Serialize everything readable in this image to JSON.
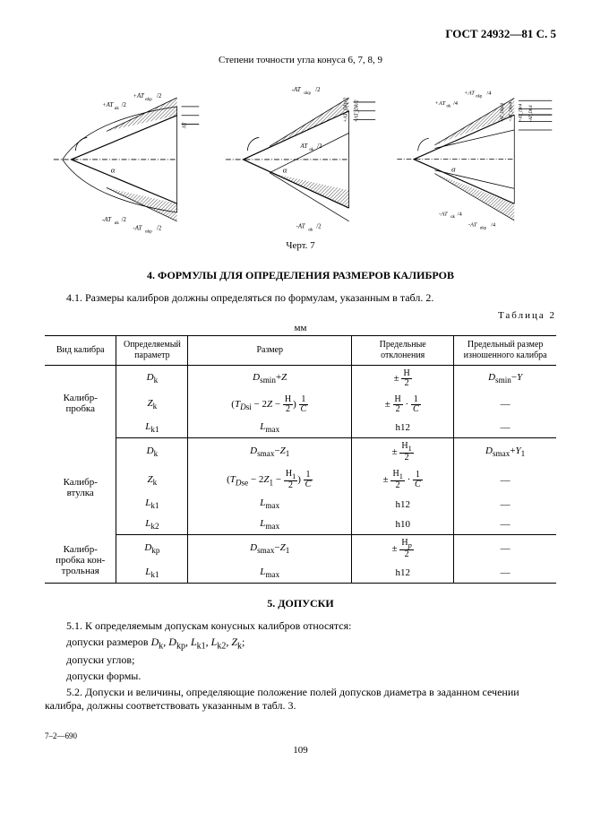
{
  "header": {
    "standard": "ГОСТ 24932—81 С. 5"
  },
  "fig_caption_top": "Степени точности угла конуса 6, 7, 8, 9",
  "fig_caption_bottom": "Черт. 7",
  "section4": {
    "title": "4. ФОРМУЛЫ ДЛЯ ОПРЕДЕЛЕНИЯ РАЗМЕРОВ КАЛИБРОВ",
    "p1": "4.1. Размеры калибров должны определяться по формулам, указанным в табл. 2."
  },
  "table2": {
    "label": "Таблица 2",
    "unit": "мм",
    "headers": {
      "c1": "Вид калибра",
      "c2": "Определяемый параметр",
      "c3": "Размер",
      "c4": "Предельные отклонения",
      "c5": "Предельный размер изношен­ного калибра"
    },
    "groups": [
      {
        "name": "Калибр-пробка",
        "rows": [
          {
            "param": "D_k",
            "size_html": "<i>D</i><sub>smin</sub>+<i>Z</i>",
            "dev_html": "± <span class='frac'><span class='num'>H</span><span class='den'>2</span></span>",
            "worn_html": "<i>D</i><sub>smin</sub>−<i>Y</i>"
          },
          {
            "param": "Z_k",
            "size_html": "(<i>T</i><sub><i>D</i>si</sub> − 2<i>Z</i> − <span class='frac'><span class='num'>H</span><span class='den'>2</span></span>) <span class='frac'><span class='num'>1</span><span class='den'><i>C</i></span></span>",
            "dev_html": "± <span class='frac'><span class='num'>H</span><span class='den'>2</span></span> · <span class='frac'><span class='num'>1</span><span class='den'><i>C</i></span></span>",
            "worn_html": "—"
          },
          {
            "param": "L_k1",
            "size_html": "<i>L</i><sub>max</sub>",
            "dev_html": "h12",
            "worn_html": "—"
          }
        ]
      },
      {
        "name": "Калибр-втулка",
        "rows": [
          {
            "param": "D_k",
            "size_html": "<i>D</i><sub>smax</sub>−<i>Z</i><sub>1</sub>",
            "dev_html": "± <span class='frac'><span class='num'>H<sub>1</sub></span><span class='den'>2</span></span>",
            "worn_html": "<i>D</i><sub>smax</sub>+<i>Y</i><sub>1</sub>"
          },
          {
            "param": "Z_k",
            "size_html": "(<i>T</i><sub><i>D</i>se</sub> − 2<i>Z</i><sub>1</sub> − <span class='frac'><span class='num'>H<sub>1</sub></span><span class='den'>2</span></span>) <span class='frac'><span class='num'>1</span><span class='den'><i>C</i></span></span>",
            "dev_html": "± <span class='frac'><span class='num'>H<sub>1</sub></span><span class='den'>2</span></span> · <span class='frac'><span class='num'>1</span><span class='den'><i>C</i></span></span>",
            "worn_html": "—"
          },
          {
            "param": "L_k1",
            "size_html": "<i>L</i><sub>max</sub>",
            "dev_html": "h12",
            "worn_html": "—"
          },
          {
            "param": "L_k2",
            "size_html": "<i>L</i><sub>max</sub>",
            "dev_html": "h10",
            "worn_html": "—"
          }
        ]
      },
      {
        "name": "Калибр-пробка кон­трольная",
        "rows": [
          {
            "param": "D_kp",
            "size_html": "<i>D</i><sub>smax</sub>−<i>Z</i><sub>1</sub>",
            "dev_html": "± <span class='frac'><span class='num'>H<sub><i>p</i></sub></span><span class='den'>2</span></span>",
            "worn_html": "—"
          },
          {
            "param": "L_k1",
            "size_html": "<i>L</i><sub>max</sub>",
            "dev_html": "h12",
            "worn_html": "—"
          }
        ]
      }
    ]
  },
  "section5": {
    "title": "5. ДОПУСКИ",
    "p1_html": "5.1. К определяемым допускам конусных калибров относятся:",
    "p2_html": "допуски размеров <i>D</i><sub>k</sub>, <i>D</i><sub>kp</sub>, <i>L</i><sub>k1</sub>, <i>L</i><sub>k2</sub>, <i>Z</i><sub>k</sub>;",
    "p3": "допуски углов;",
    "p4": "допуски формы.",
    "p5": "5.2. Допуски и величины, определяющие положение полей допусков диаметра в заданном сече­нии калибра, должны соответствовать указанным в табл. 3."
  },
  "footer": {
    "left": "7–2—690",
    "page": "109"
  },
  "cone_labels": {
    "c1": [
      "+AT_αk/2",
      "+AT_αkp/2",
      "-AT_αk/2",
      "-AT_αkp/2",
      "AT_αkp/2",
      "AT_Dp/2",
      "AT_Dk/2",
      "α"
    ],
    "c2": [
      "-AT_αkp/2",
      "+AT_Dkp/2",
      "+AT_Dk/2",
      "AT_αk/2",
      "AT_Dp/2",
      "α",
      "-AT_αk/2"
    ],
    "c3": [
      "+AT_αk/4",
      "+AT_αkp/4",
      "-AT_Dkp/4",
      "+AT_Dkp/4",
      "+AT_Dk/4",
      "-AT_Dk/4",
      "α",
      "AT_Dp/4",
      "-AT_αk/4",
      "-AT_αkp/4"
    ]
  },
  "style": {
    "bg": "#ffffff",
    "ink": "#000000",
    "hatch": "#000000"
  }
}
